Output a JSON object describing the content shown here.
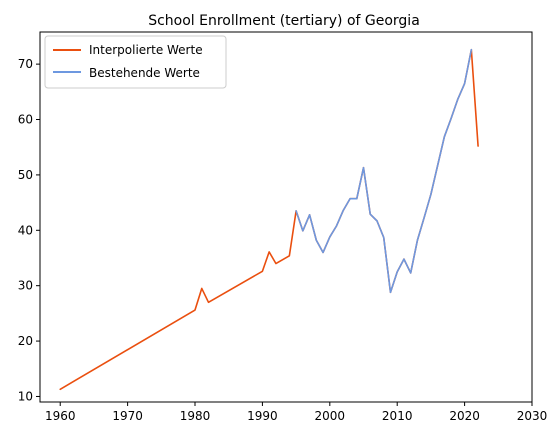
{
  "chart_data": {
    "type": "line",
    "title": "School Enrollment (tertiary) of Georgia",
    "xlabel": "",
    "ylabel": "",
    "xlim": [
      1957,
      2030
    ],
    "ylim": [
      9,
      75.8
    ],
    "xticks": [
      1960,
      1970,
      1980,
      1990,
      2000,
      2010,
      2020,
      2030
    ],
    "yticks": [
      10,
      20,
      30,
      40,
      50,
      60,
      70
    ],
    "grid": false,
    "legend_position": "top-left",
    "series": [
      {
        "name": "Interpolierte Werte",
        "color": "#ea4f0f",
        "x": [
          1960,
          1980,
          1981,
          1982,
          1990,
          1991,
          1992,
          1994,
          1995,
          1996,
          1997,
          1998,
          1999,
          2000,
          2001,
          2002,
          2003,
          2004,
          2005,
          2006,
          2007,
          2008,
          2009,
          2010,
          2011,
          2012,
          2013,
          2014,
          2015,
          2016,
          2017,
          2018,
          2019,
          2020,
          2021,
          2022
        ],
        "y": [
          11.3,
          25.6,
          29.5,
          27.0,
          32.6,
          36.1,
          34.0,
          35.4,
          43.5,
          39.9,
          42.8,
          38.2,
          36.0,
          38.8,
          40.8,
          43.6,
          45.7,
          45.7,
          51.3,
          42.9,
          41.7,
          38.7,
          28.8,
          32.5,
          34.8,
          32.3,
          38.2,
          42.3,
          46.5,
          51.7,
          56.9,
          60.2,
          63.7,
          66.5,
          72.6,
          55.2
        ]
      },
      {
        "name": "Bestehende Werte",
        "color": "#6d98e0",
        "x": [
          1995,
          1996,
          1997,
          1998,
          1999,
          2000,
          2001,
          2002,
          2003,
          2004,
          2005,
          2006,
          2007,
          2008,
          2009,
          2010,
          2011,
          2012,
          2013,
          2014,
          2015,
          2016,
          2017,
          2018,
          2019,
          2020,
          2021
        ],
        "y": [
          43.5,
          39.9,
          42.8,
          38.2,
          36.0,
          38.8,
          40.8,
          43.6,
          45.7,
          45.7,
          51.3,
          42.9,
          41.7,
          38.7,
          28.8,
          32.5,
          34.8,
          32.3,
          38.2,
          42.3,
          46.5,
          51.7,
          56.9,
          60.2,
          63.7,
          66.5,
          72.6
        ]
      }
    ]
  }
}
